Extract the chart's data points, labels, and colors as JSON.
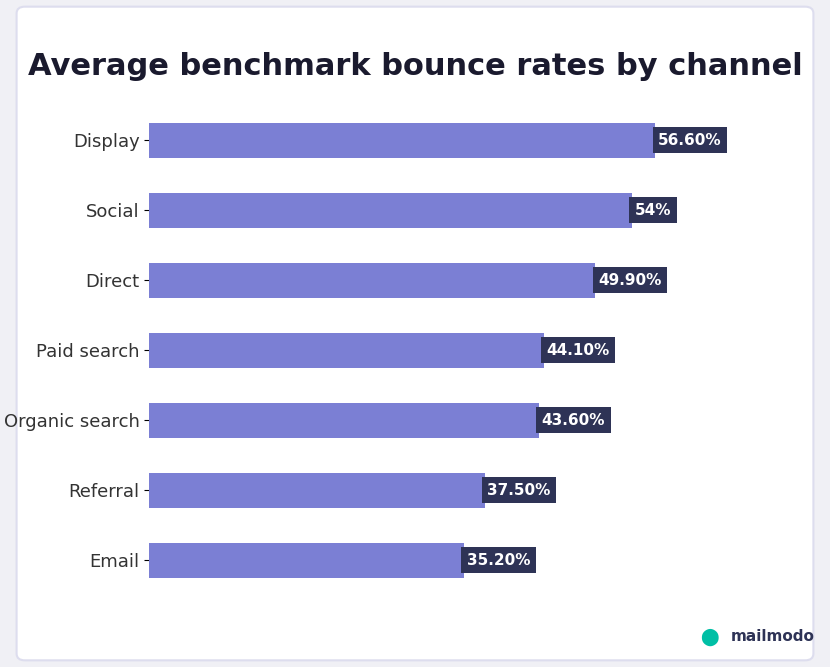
{
  "title": "Average benchmark bounce rates by channel",
  "categories": [
    "Display",
    "Social",
    "Direct",
    "Paid search",
    "Organic search",
    "Referral",
    "Email"
  ],
  "values": [
    56.6,
    54.0,
    49.9,
    44.1,
    43.6,
    37.5,
    35.2
  ],
  "labels": [
    "56.60%",
    "54%",
    "49.90%",
    "44.10%",
    "43.60%",
    "37.50%",
    "35.20%"
  ],
  "bar_color": "#7B7FD4",
  "label_bg_color": "#2E3356",
  "label_text_color": "#FFFFFF",
  "title_color": "#1a1a2e",
  "category_text_color": "#333333",
  "grid_color": "#CCCCDD",
  "background_color": "#FFFFFF",
  "outer_bg_color": "#F0F0F5",
  "xlim": [
    0,
    65
  ],
  "bar_height": 0.5,
  "title_fontsize": 22,
  "label_fontsize": 11,
  "category_fontsize": 13
}
